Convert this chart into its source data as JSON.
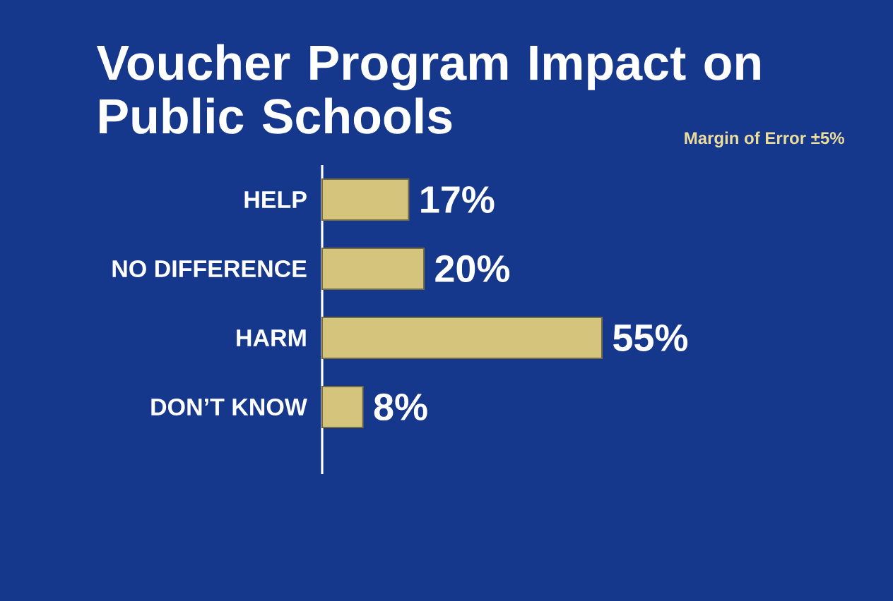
{
  "chart_data": {
    "type": "bar",
    "orientation": "horizontal",
    "title": "Voucher Program Impact on Public Schools",
    "annotations": [
      "Margin of Error ±5%"
    ],
    "categories": [
      "HELP",
      "NO DIFFERENCE",
      "HARM",
      "DON’T KNOW"
    ],
    "values": [
      17,
      20,
      55,
      8
    ],
    "value_labels": [
      "17%",
      "20%",
      "55%",
      "8%"
    ],
    "color": "#d4c47c",
    "tick_labels": "y"
  }
}
